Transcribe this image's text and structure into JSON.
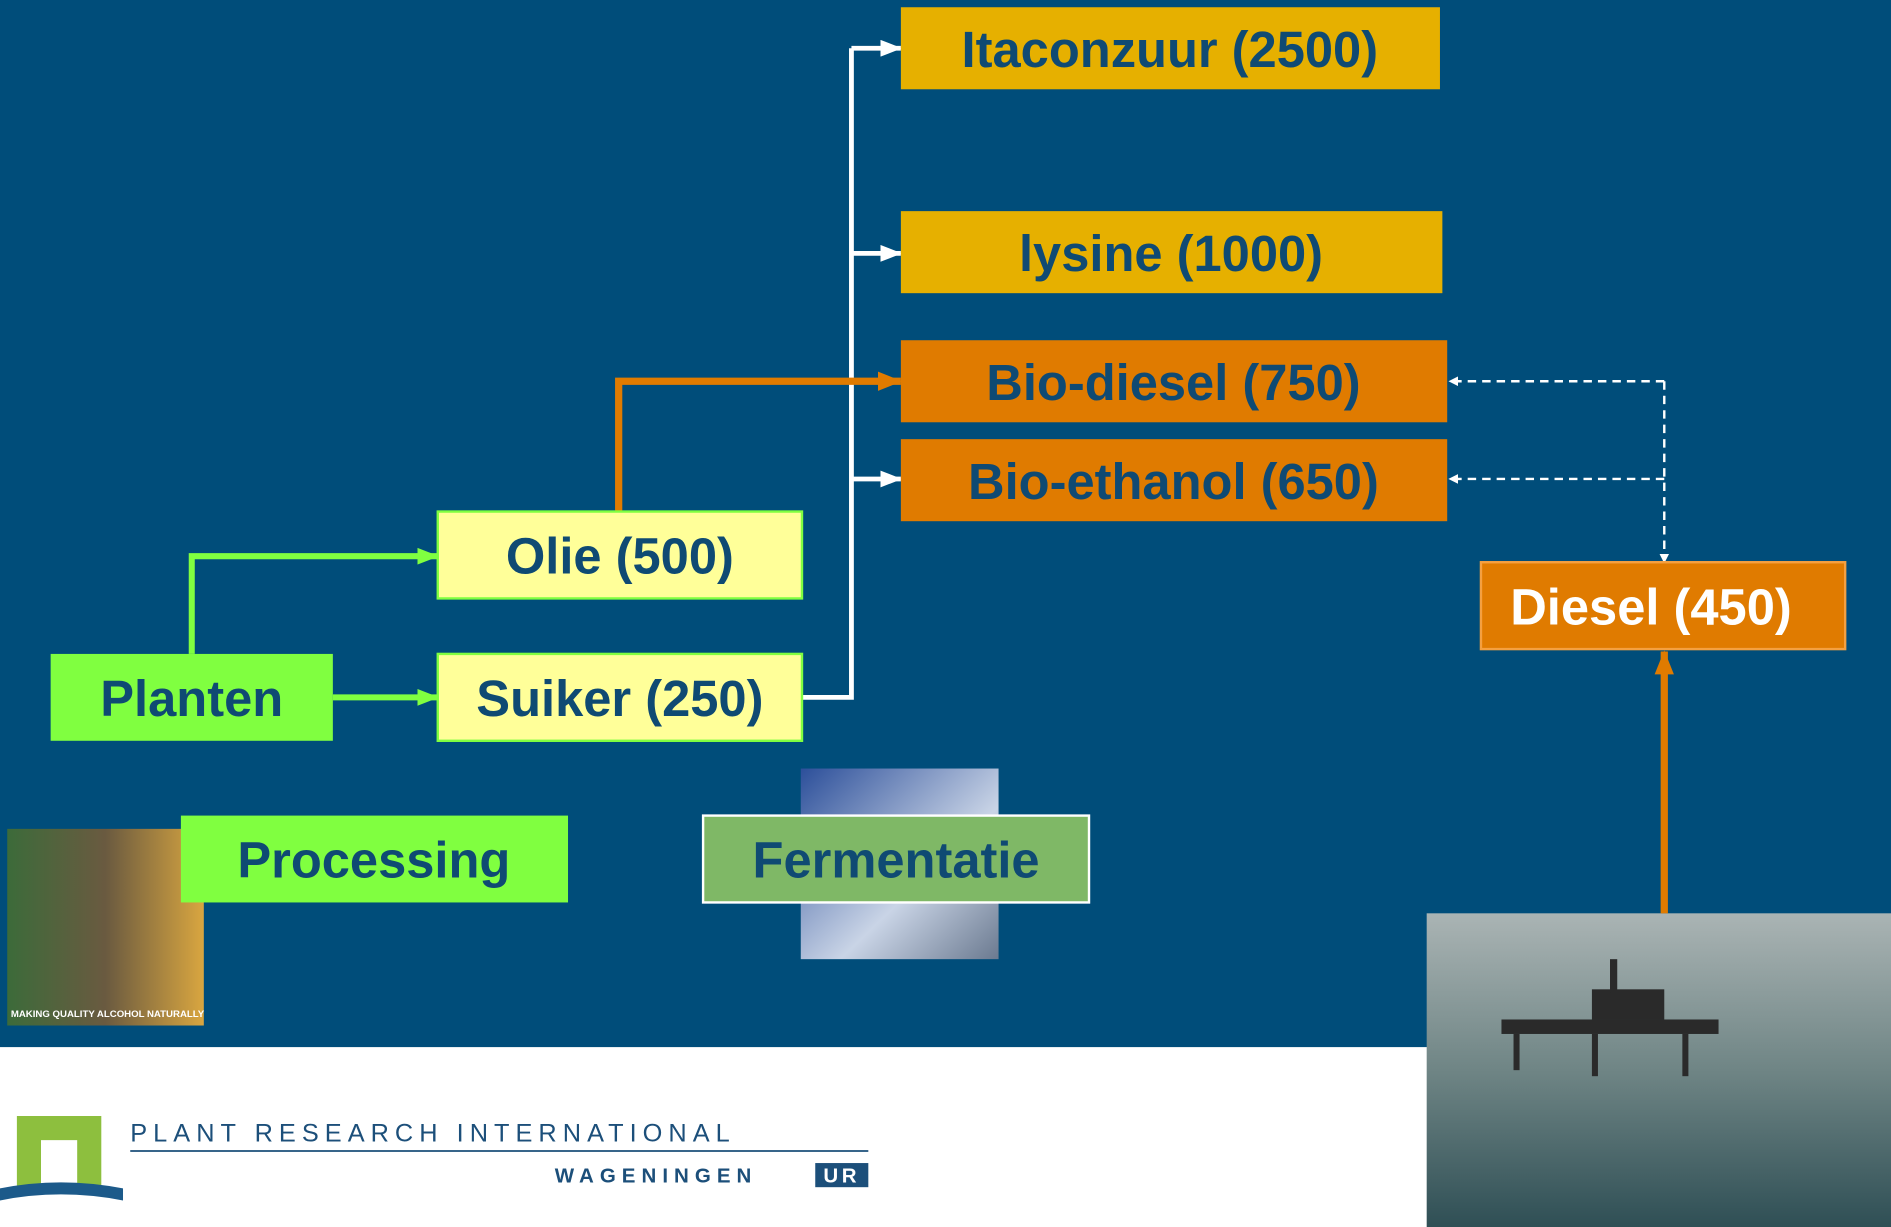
{
  "nodes": [
    {
      "label": "Itaconzuur (2500)"
    },
    {
      "label": "lysine (1000)"
    },
    {
      "label": "Bio-diesel (750)"
    },
    {
      "label": "Bio-ethanol (650)"
    },
    {
      "label": "Olie (500)"
    },
    {
      "label": "Suiker (250)"
    },
    {
      "label": "Planten"
    },
    {
      "label": "Diesel (450)"
    },
    {
      "label": "Processing"
    },
    {
      "label": "Fermentatie"
    }
  ],
  "photo_caption": "MAKING QUALITY ALCOHOL NATURALLY",
  "footer": {
    "organization": "PLANT RESEARCH INTERNATIONAL",
    "university": "WAGENINGEN",
    "university_badge": "UR"
  }
}
